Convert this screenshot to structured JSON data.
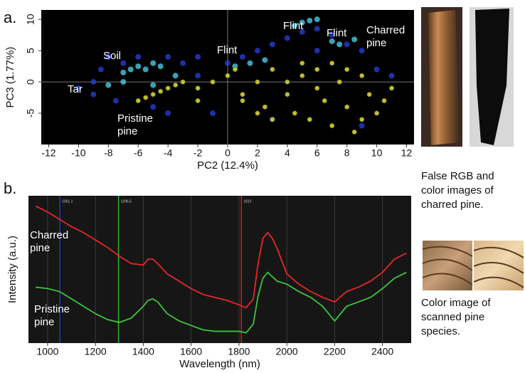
{
  "panel_labels": [
    "a.",
    "b."
  ],
  "captions": [
    "False RGB and color images of charred pine.",
    "Color image of scanned pine species."
  ],
  "chart_data": [
    {
      "type": "scatter",
      "xlabel": "PC2 (12.4%)",
      "ylabel": "PC3 (1.77%)",
      "xlim": [
        -12.5,
        12.5
      ],
      "ylim": [
        -10,
        11.5
      ],
      "xticks": [
        -12,
        -10,
        -8,
        -6,
        -4,
        -2,
        0,
        2,
        4,
        6,
        8,
        10,
        12
      ],
      "yticks": [
        -5,
        0,
        5,
        10
      ],
      "series": [
        {
          "color": "#2a3fe0",
          "x": [
            -10,
            -9,
            -8.5,
            -9,
            -8,
            -7.5,
            -7,
            -6,
            -5,
            -4,
            -3,
            -2,
            -1,
            0,
            1,
            2,
            3,
            4,
            5,
            6,
            7,
            8,
            9,
            10,
            -4,
            -2,
            3,
            6,
            9,
            11
          ],
          "y": [
            -1,
            0,
            2,
            -2,
            4,
            -3,
            3,
            4,
            -4,
            4,
            3,
            1,
            -5,
            3,
            4,
            5,
            6,
            7,
            8,
            8.5,
            7.5,
            6,
            5,
            2,
            -5,
            4,
            -6,
            5,
            -7,
            1
          ]
        },
        {
          "color": "#4fd6f2",
          "x": [
            -7,
            -6.5,
            -6,
            -5.5,
            -5,
            -4.5,
            -8,
            -7,
            -5,
            -3.5,
            0.5,
            1.5,
            2.5,
            4.5,
            5,
            5.5,
            6,
            7,
            7.5,
            8.5
          ],
          "y": [
            1.5,
            2,
            2.5,
            2,
            3,
            2.5,
            -0.5,
            0,
            -0.5,
            1,
            2.5,
            3,
            3.5,
            9,
            9.5,
            9.8,
            10,
            6.5,
            6,
            6.8
          ]
        },
        {
          "color": "#c9c93a",
          "x": [
            -6,
            -5.5,
            -5,
            -4.5,
            -4,
            -3.5,
            -3,
            -2,
            -1,
            0,
            0.5,
            1,
            2,
            2.5,
            3,
            4,
            4.5,
            5,
            5.5,
            6,
            6.5,
            7,
            7.5,
            8,
            8.5,
            9,
            9.5,
            10,
            10.5,
            11,
            3,
            5,
            7,
            9,
            1,
            6,
            8,
            4,
            2,
            -2
          ],
          "y": [
            -3,
            -2.5,
            -2,
            -1.5,
            -1,
            -0.5,
            0,
            -1,
            0,
            1,
            2,
            -3,
            0,
            -4,
            2,
            -2,
            -5,
            1,
            -6,
            2,
            -3,
            -7,
            0,
            -4,
            -8,
            1,
            -2,
            -5,
            -3,
            -1,
            -6,
            3,
            3,
            -6,
            -2,
            -1,
            2,
            0,
            -5,
            -3
          ]
        }
      ],
      "annotations": [
        "Soil",
        "Tar",
        "Pristine pine",
        "Flint",
        "Flint",
        "Flint",
        "Charred pine"
      ]
    },
    {
      "type": "line",
      "xlabel": "Wavelength (nm)",
      "ylabel": "Intensity (a.u.)",
      "xlim": [
        920,
        2520
      ],
      "ylim": [
        0,
        100
      ],
      "xticks": [
        1000,
        1200,
        1400,
        1600,
        1800,
        2000,
        2200,
        2400
      ],
      "grid": true,
      "x": [
        950,
        1000,
        1050,
        1100,
        1150,
        1200,
        1250,
        1300,
        1350,
        1400,
        1420,
        1440,
        1460,
        1500,
        1550,
        1600,
        1650,
        1700,
        1750,
        1800,
        1830,
        1860,
        1880,
        1900,
        1920,
        1940,
        1960,
        2000,
        2050,
        2100,
        2150,
        2200,
        2250,
        2300,
        2350,
        2400,
        2450,
        2500
      ],
      "series": [
        {
          "color": "#e8262a",
          "values": [
            93,
            89,
            84,
            79,
            75,
            70,
            65,
            59,
            54,
            53,
            57,
            57,
            54,
            47,
            42,
            37,
            33,
            31,
            29,
            26,
            24,
            30,
            54,
            71,
            75,
            71,
            64,
            47,
            40,
            35,
            31,
            28,
            35,
            38,
            42,
            48,
            57,
            61
          ]
        },
        {
          "color": "#3cc43c",
          "values": [
            38,
            37,
            35,
            30,
            25,
            20,
            16,
            14,
            17,
            25,
            29,
            30,
            28,
            20,
            15,
            12,
            9,
            8,
            8,
            8,
            7,
            13,
            32,
            44,
            48,
            45,
            42,
            40,
            35,
            31,
            25,
            15,
            25,
            28,
            31,
            37,
            44,
            48
          ]
        }
      ],
      "markers": [
        {
          "value": 1051.1,
          "color": "#2433c8"
        },
        {
          "value": 1296.5,
          "color": "#2fb52f"
        },
        {
          "value": 1810,
          "color": "#c42020"
        }
      ],
      "annotations": [
        "Charred pine",
        "Pristine pine"
      ]
    }
  ]
}
